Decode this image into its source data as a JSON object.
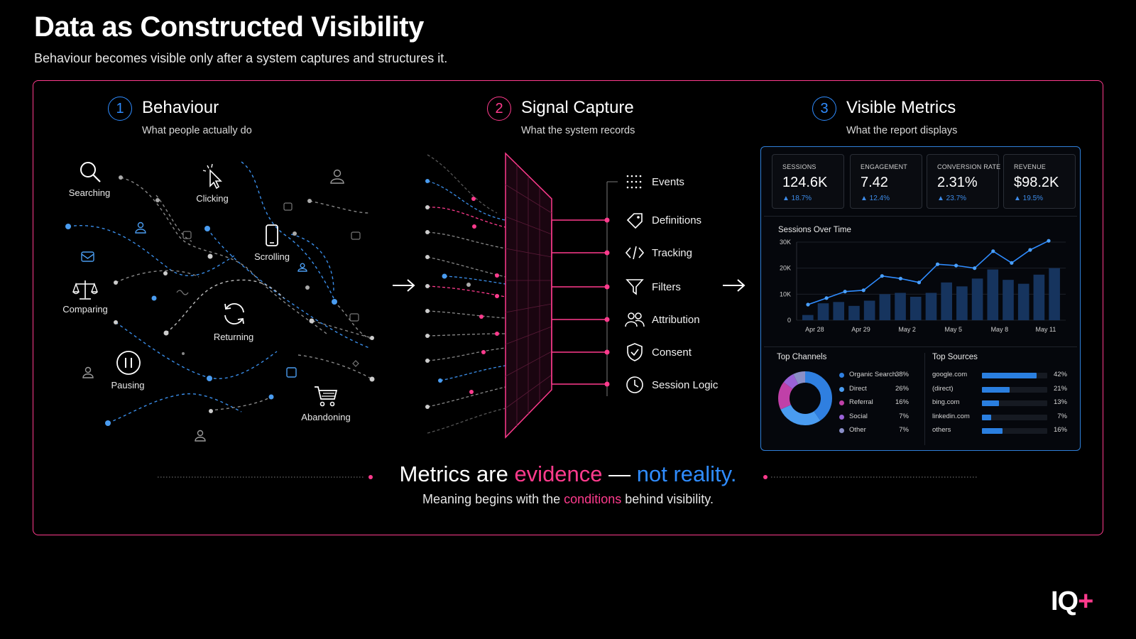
{
  "header": {
    "title": "Data as Constructed Visibility",
    "subtitle": "Behaviour becomes visible only after a system captures and structures it."
  },
  "colors": {
    "accent_pink": "#ff3b8d",
    "accent_blue": "#2f8cff",
    "background": "#000000"
  },
  "steps": [
    {
      "num": "1",
      "title": "Behaviour",
      "desc": "What people actually do",
      "color": "#2f8cff"
    },
    {
      "num": "2",
      "title": "Signal Capture",
      "desc": "What the system records",
      "color": "#ff3b8d"
    },
    {
      "num": "3",
      "title": "Visible Metrics",
      "desc": "What the report displays",
      "color": "#2f8cff"
    }
  ],
  "behaviours": [
    {
      "label": "Searching",
      "icon": "search-icon"
    },
    {
      "label": "Clicking",
      "icon": "cursor-click-icon"
    },
    {
      "label": "Scrolling",
      "icon": "phone-icon"
    },
    {
      "label": "Comparing",
      "icon": "scales-icon"
    },
    {
      "label": "Returning",
      "icon": "refresh-icon"
    },
    {
      "label": "Pausing",
      "icon": "pause-icon"
    },
    {
      "label": "Abandoning",
      "icon": "cart-icon"
    }
  ],
  "capture": [
    {
      "label": "Events",
      "icon": "dot-grid-icon"
    },
    {
      "label": "Definitions",
      "icon": "tag-icon"
    },
    {
      "label": "Tracking",
      "icon": "code-icon"
    },
    {
      "label": "Filters",
      "icon": "filter-icon"
    },
    {
      "label": "Attribution",
      "icon": "users-icon"
    },
    {
      "label": "Consent",
      "icon": "shield-check-icon"
    },
    {
      "label": "Session Logic",
      "icon": "clock-icon"
    }
  ],
  "dashboard": {
    "kpis": [
      {
        "label": "SESSIONS",
        "value": "124.6K",
        "delta": "▲ 18.7%"
      },
      {
        "label": "ENGAGEMENT",
        "value": "7.42",
        "delta": "▲ 12.4%"
      },
      {
        "label": "CONVERSION RATE",
        "value": "2.31%",
        "delta": "▲ 23.7%"
      },
      {
        "label": "REVENUE",
        "value": "$98.2K",
        "delta": "▲ 19.5%"
      }
    ],
    "channels_title": "Top Channels",
    "sources_title": "Top Sources",
    "channels": [
      {
        "name": "Organic Search",
        "pct": "38%",
        "value": 38,
        "color": "#2f7fe0"
      },
      {
        "name": "Direct",
        "pct": "26%",
        "value": 26,
        "color": "#4a9cf0"
      },
      {
        "name": "Referral",
        "pct": "16%",
        "value": 16,
        "color": "#c040a8"
      },
      {
        "name": "Social",
        "pct": "7%",
        "value": 7,
        "color": "#9a62d8"
      },
      {
        "name": "Other",
        "pct": "7%",
        "value": 7,
        "color": "#8a8fc8"
      }
    ],
    "sources": [
      {
        "name": "google.com",
        "pct": "42%",
        "value": 42
      },
      {
        "name": "(direct)",
        "pct": "21%",
        "value": 21
      },
      {
        "name": "bing.com",
        "pct": "13%",
        "value": 13
      },
      {
        "name": "linkedin.com",
        "pct": "7%",
        "value": 7
      },
      {
        "name": "others",
        "pct": "16%",
        "value": 16
      }
    ]
  },
  "chart_data": {
    "type": "line",
    "title": "Sessions Over Time",
    "xlabel": "",
    "ylabel": "",
    "ylim": [
      0,
      30000
    ],
    "y_ticks": [
      "0",
      "10K",
      "20K",
      "30K"
    ],
    "y_tick_values": [
      0,
      10000,
      20000,
      30000
    ],
    "x_tick_labels": [
      "Apr 28",
      "Apr 29",
      "May 2",
      "May 5",
      "May 8",
      "May 11"
    ],
    "x_tick_index": [
      1,
      4,
      7,
      10,
      13,
      16
    ],
    "grid": true,
    "series": [
      {
        "kind": "line",
        "values": [
          6000,
          8500,
          11000,
          11500,
          17000,
          16000,
          14500,
          21500,
          21000,
          20000,
          26500,
          22000,
          27000,
          30500
        ]
      },
      {
        "kind": "bar",
        "values": [
          2000,
          6500,
          7000,
          5500,
          7500,
          10000,
          10500,
          9000,
          10500,
          14500,
          13000,
          16000,
          19500,
          15500,
          14000,
          17500,
          20000
        ]
      }
    ]
  },
  "tagline": {
    "part1": "Metrics are ",
    "evidence": "evidence",
    "part2": " — ",
    "reality": "not reality.",
    "sub1": "Meaning begins with the ",
    "conditions": "conditions",
    "sub2": " behind visibility."
  },
  "logo": {
    "text": "IQ",
    "plus": "+"
  }
}
